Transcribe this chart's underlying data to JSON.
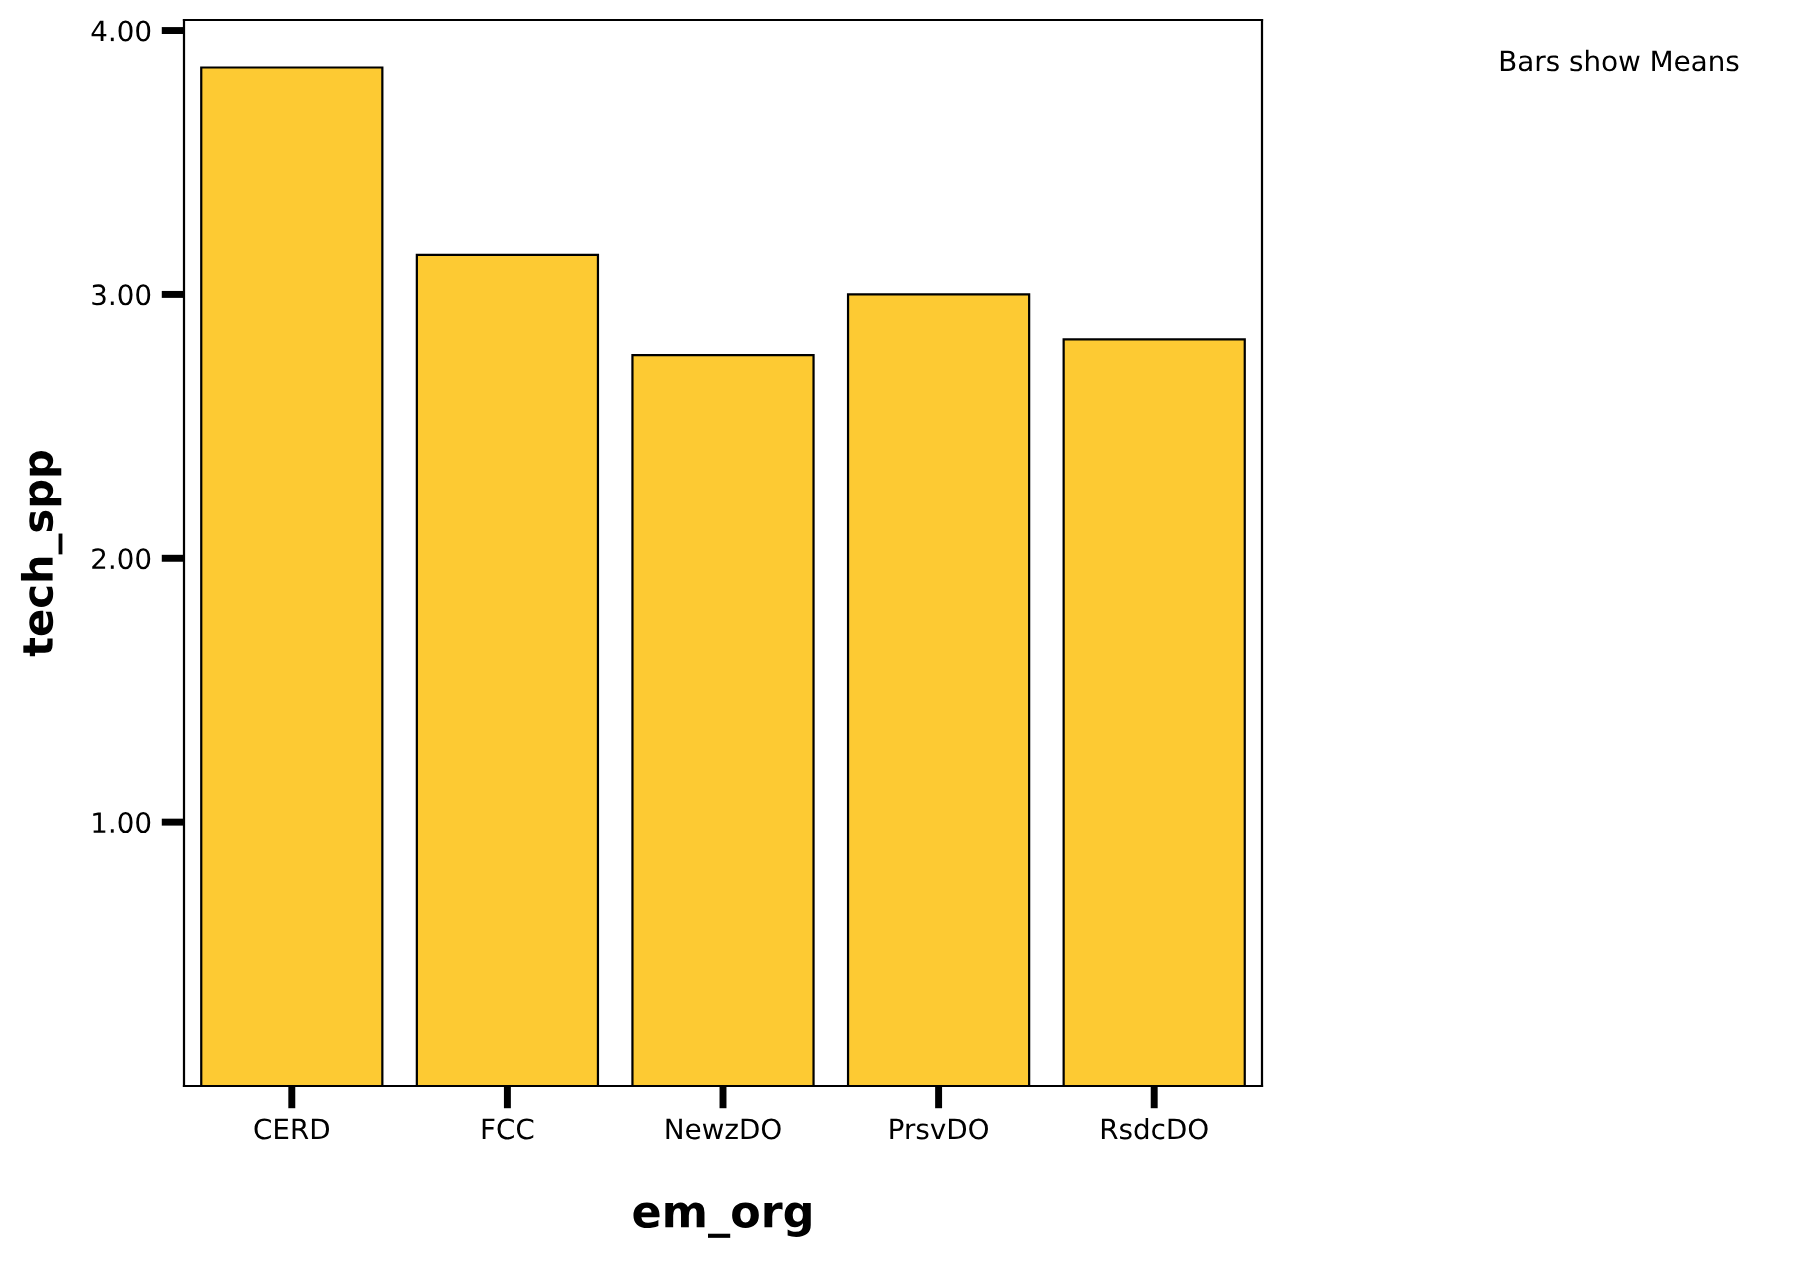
{
  "chart_data": {
    "type": "bar",
    "xlabel": "em_org",
    "ylabel": "tech_spp",
    "categories": [
      "CERD",
      "FCC",
      "NewzDO",
      "PrsvDO",
      "RsdcDO"
    ],
    "values": [
      3.86,
      3.15,
      2.77,
      3.0,
      2.83
    ],
    "color": "#fdca33",
    "ylim": [
      0,
      4.04
    ],
    "yticks": [
      {
        "value": 1,
        "label": "1.00"
      },
      {
        "value": 2,
        "label": "2.00"
      },
      {
        "value": 3,
        "label": "3.00"
      },
      {
        "value": 4,
        "label": "4.00"
      }
    ],
    "grid": false,
    "legend": false,
    "annotations": [
      "Bars show Means"
    ]
  }
}
